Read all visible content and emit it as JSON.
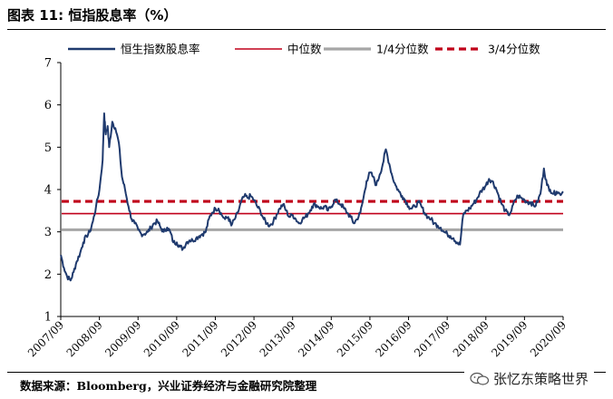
{
  "figure": {
    "title": "图表 11:  恒指股息率（%）",
    "source": "数据来源：Bloomberg，兴业证券经济与金融研究院整理",
    "watermark": "张忆东策略世界"
  },
  "chart_data": {
    "type": "line",
    "title": "",
    "xlabel": "",
    "ylabel": "",
    "ylim": [
      1,
      7
    ],
    "yticks": [
      1,
      2,
      3,
      4,
      5,
      6,
      7
    ],
    "xlim": [
      2007.667,
      2020.667
    ],
    "xticks": [
      "2007/09",
      "2008/09",
      "2009/09",
      "2010/09",
      "2011/09",
      "2012/09",
      "2013/09",
      "2014/09",
      "2015/09",
      "2016/09",
      "2017/09",
      "2018/09",
      "2019/09",
      "2020/09"
    ],
    "grid": false,
    "legend_position": "top",
    "series": [
      {
        "name": "恒生指数股息率",
        "color": "#1f3a6e",
        "style": "solid",
        "points": [
          [
            2007.67,
            2.45
          ],
          [
            2007.75,
            2.15
          ],
          [
            2007.83,
            1.95
          ],
          [
            2007.92,
            1.85
          ],
          [
            2008.0,
            2.05
          ],
          [
            2008.08,
            2.3
          ],
          [
            2008.17,
            2.5
          ],
          [
            2008.25,
            2.75
          ],
          [
            2008.33,
            2.9
          ],
          [
            2008.42,
            3.0
          ],
          [
            2008.5,
            3.25
          ],
          [
            2008.58,
            3.6
          ],
          [
            2008.67,
            4.0
          ],
          [
            2008.75,
            4.7
          ],
          [
            2008.79,
            5.8
          ],
          [
            2008.83,
            5.3
          ],
          [
            2008.88,
            5.5
          ],
          [
            2008.92,
            5.0
          ],
          [
            2009.0,
            5.6
          ],
          [
            2009.08,
            5.45
          ],
          [
            2009.17,
            5.1
          ],
          [
            2009.25,
            4.3
          ],
          [
            2009.33,
            4.0
          ],
          [
            2009.42,
            3.6
          ],
          [
            2009.5,
            3.3
          ],
          [
            2009.58,
            3.2
          ],
          [
            2009.67,
            3.05
          ],
          [
            2009.75,
            2.95
          ],
          [
            2009.83,
            2.95
          ],
          [
            2009.92,
            3.0
          ],
          [
            2010.0,
            3.1
          ],
          [
            2010.08,
            3.2
          ],
          [
            2010.17,
            3.25
          ],
          [
            2010.25,
            3.1
          ],
          [
            2010.33,
            3.0
          ],
          [
            2010.42,
            3.1
          ],
          [
            2010.5,
            3.0
          ],
          [
            2010.58,
            2.75
          ],
          [
            2010.67,
            2.75
          ],
          [
            2010.75,
            2.65
          ],
          [
            2010.83,
            2.6
          ],
          [
            2010.92,
            2.75
          ],
          [
            2011.0,
            2.8
          ],
          [
            2011.08,
            2.8
          ],
          [
            2011.17,
            2.85
          ],
          [
            2011.25,
            2.9
          ],
          [
            2011.33,
            2.95
          ],
          [
            2011.42,
            3.0
          ],
          [
            2011.5,
            3.3
          ],
          [
            2011.58,
            3.45
          ],
          [
            2011.67,
            3.55
          ],
          [
            2011.75,
            3.55
          ],
          [
            2011.83,
            3.4
          ],
          [
            2011.92,
            3.3
          ],
          [
            2012.0,
            3.35
          ],
          [
            2012.08,
            3.15
          ],
          [
            2012.17,
            3.3
          ],
          [
            2012.25,
            3.45
          ],
          [
            2012.33,
            3.7
          ],
          [
            2012.42,
            3.85
          ],
          [
            2012.5,
            3.8
          ],
          [
            2012.58,
            3.85
          ],
          [
            2012.67,
            3.75
          ],
          [
            2012.75,
            3.6
          ],
          [
            2012.83,
            3.5
          ],
          [
            2012.92,
            3.3
          ],
          [
            2013.0,
            3.2
          ],
          [
            2013.08,
            3.15
          ],
          [
            2013.17,
            3.25
          ],
          [
            2013.25,
            3.4
          ],
          [
            2013.33,
            3.55
          ],
          [
            2013.42,
            3.65
          ],
          [
            2013.5,
            3.5
          ],
          [
            2013.58,
            3.35
          ],
          [
            2013.67,
            3.4
          ],
          [
            2013.75,
            3.3
          ],
          [
            2013.83,
            3.2
          ],
          [
            2013.92,
            3.3
          ],
          [
            2014.0,
            3.35
          ],
          [
            2014.08,
            3.45
          ],
          [
            2014.17,
            3.6
          ],
          [
            2014.25,
            3.65
          ],
          [
            2014.33,
            3.6
          ],
          [
            2014.42,
            3.55
          ],
          [
            2014.5,
            3.6
          ],
          [
            2014.58,
            3.5
          ],
          [
            2014.67,
            3.6
          ],
          [
            2014.75,
            3.75
          ],
          [
            2014.83,
            3.7
          ],
          [
            2014.92,
            3.65
          ],
          [
            2015.0,
            3.55
          ],
          [
            2015.08,
            3.45
          ],
          [
            2015.17,
            3.35
          ],
          [
            2015.25,
            3.2
          ],
          [
            2015.33,
            3.3
          ],
          [
            2015.42,
            3.45
          ],
          [
            2015.5,
            3.8
          ],
          [
            2015.58,
            4.2
          ],
          [
            2015.67,
            4.4
          ],
          [
            2015.75,
            4.3
          ],
          [
            2015.83,
            4.1
          ],
          [
            2015.92,
            4.35
          ],
          [
            2016.0,
            4.6
          ],
          [
            2016.08,
            4.95
          ],
          [
            2016.17,
            4.6
          ],
          [
            2016.25,
            4.3
          ],
          [
            2016.33,
            4.1
          ],
          [
            2016.42,
            3.95
          ],
          [
            2016.5,
            3.85
          ],
          [
            2016.58,
            3.75
          ],
          [
            2016.67,
            3.6
          ],
          [
            2016.75,
            3.55
          ],
          [
            2016.83,
            3.6
          ],
          [
            2016.92,
            3.7
          ],
          [
            2017.0,
            3.6
          ],
          [
            2017.08,
            3.45
          ],
          [
            2017.17,
            3.35
          ],
          [
            2017.25,
            3.3
          ],
          [
            2017.33,
            3.2
          ],
          [
            2017.42,
            3.15
          ],
          [
            2017.5,
            3.1
          ],
          [
            2017.58,
            3.0
          ],
          [
            2017.67,
            2.95
          ],
          [
            2017.75,
            2.9
          ],
          [
            2017.83,
            2.85
          ],
          [
            2017.92,
            2.75
          ],
          [
            2018.0,
            2.7
          ],
          [
            2018.08,
            3.4
          ],
          [
            2018.17,
            3.5
          ],
          [
            2018.25,
            3.55
          ],
          [
            2018.33,
            3.65
          ],
          [
            2018.42,
            3.75
          ],
          [
            2018.5,
            3.9
          ],
          [
            2018.58,
            4.0
          ],
          [
            2018.67,
            4.1
          ],
          [
            2018.75,
            4.25
          ],
          [
            2018.83,
            4.2
          ],
          [
            2018.92,
            4.05
          ],
          [
            2019.0,
            3.85
          ],
          [
            2019.08,
            3.65
          ],
          [
            2019.17,
            3.5
          ],
          [
            2019.25,
            3.4
          ],
          [
            2019.33,
            3.5
          ],
          [
            2019.42,
            3.75
          ],
          [
            2019.5,
            3.85
          ],
          [
            2019.58,
            3.8
          ],
          [
            2019.67,
            3.75
          ],
          [
            2019.75,
            3.7
          ],
          [
            2019.83,
            3.7
          ],
          [
            2019.92,
            3.6
          ],
          [
            2020.0,
            3.7
          ],
          [
            2020.08,
            3.9
          ],
          [
            2020.17,
            4.5
          ],
          [
            2020.25,
            4.1
          ],
          [
            2020.33,
            4.0
          ],
          [
            2020.42,
            3.9
          ],
          [
            2020.5,
            3.95
          ],
          [
            2020.58,
            3.9
          ],
          [
            2020.67,
            3.95
          ]
        ]
      },
      {
        "name": "中位数",
        "color": "#c0001a",
        "style": "solid",
        "value": 3.43
      },
      {
        "name": "1/4分位数",
        "color": "#a6a6a6",
        "style": "solid",
        "value": 3.05
      },
      {
        "name": "3/4分位数",
        "color": "#c0001a",
        "style": "dashed",
        "value": 3.72
      }
    ]
  }
}
